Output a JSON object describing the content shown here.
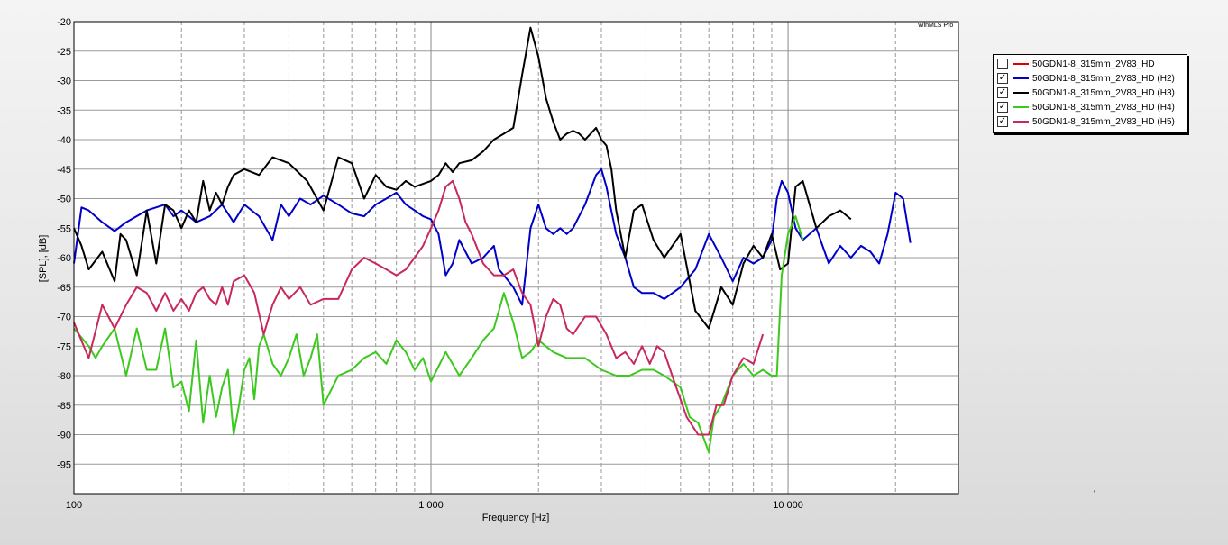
{
  "brand": "WinMLS Pro",
  "stray_mark": "'",
  "legend": [
    {
      "label": "50GDN1-8_315mm_2V83_HD",
      "checked": false,
      "check_mark": "",
      "color": "#e00000"
    },
    {
      "label": "50GDN1-8_315mm_2V83_HD (H2)",
      "checked": true,
      "check_mark": "✓",
      "color": "#0000c8"
    },
    {
      "label": "50GDN1-8_315mm_2V83_HD (H3)",
      "checked": true,
      "check_mark": "✓",
      "color": "#000000"
    },
    {
      "label": "50GDN1-8_315mm_2V83_HD (H4)",
      "checked": true,
      "check_mark": "✓",
      "color": "#3cc81e"
    },
    {
      "label": "50GDN1-8_315mm_2V83_HD (H5)",
      "checked": true,
      "check_mark": "✓",
      "color": "#c8285a"
    }
  ],
  "chart_data": {
    "type": "line",
    "title": "",
    "xlabel": "Frequency [Hz]",
    "ylabel": "[SPL], [dB]",
    "x_scale": "log",
    "xlim": [
      100,
      30000
    ],
    "ylim": [
      -100,
      -20
    ],
    "y_ticks": [
      -20,
      -25,
      -30,
      -35,
      -40,
      -45,
      -50,
      -55,
      -60,
      -65,
      -70,
      -75,
      -80,
      -85,
      -90,
      -95
    ],
    "y_tick_labels": [
      "-20",
      "-25",
      "-30",
      "-35",
      "-40",
      "-45",
      "-50",
      "-55",
      "-60",
      "-65",
      "-70",
      "-75",
      "-80",
      "-85",
      "-90",
      "-95"
    ],
    "x_major_ticks": [
      100,
      1000,
      10000
    ],
    "x_tick_labels": [
      "100",
      "1 000",
      "10 000"
    ],
    "x_minor_ticks": [
      200,
      300,
      400,
      500,
      600,
      700,
      800,
      900,
      2000,
      3000,
      4000,
      5000,
      6000,
      7000,
      8000,
      9000,
      20000,
      30000
    ],
    "grid": true,
    "legend_position": "right",
    "series": [
      {
        "name": "50GDN1-8_315mm_2V83_HD (H2)",
        "color": "#0000c8",
        "x": [
          100,
          105,
          110,
          120,
          130,
          140,
          160,
          180,
          190,
          200,
          220,
          240,
          260,
          280,
          300,
          330,
          360,
          380,
          400,
          430,
          460,
          500,
          550,
          600,
          650,
          700,
          750,
          800,
          850,
          900,
          950,
          1000,
          1050,
          1100,
          1150,
          1200,
          1300,
          1400,
          1500,
          1550,
          1600,
          1700,
          1800,
          1900,
          2000,
          2100,
          2200,
          2300,
          2400,
          2500,
          2700,
          2900,
          3000,
          3100,
          3300,
          3500,
          3700,
          3900,
          4200,
          4500,
          5000,
          5500,
          6000,
          6500,
          7000,
          7500,
          8000,
          8500,
          9000,
          9300,
          9600,
          10000,
          10500,
          11000,
          12000,
          13000,
          14000,
          15000,
          16000,
          17000,
          18000,
          19000,
          20000,
          21000,
          22000
        ],
        "y": [
          -61,
          -51.5,
          -52,
          -54,
          -55.5,
          -54,
          -52,
          -51,
          -53,
          -52,
          -54,
          -53,
          -51,
          -54,
          -51,
          -53,
          -57,
          -51,
          -53,
          -50,
          -51,
          -49.5,
          -51,
          -52.5,
          -53,
          -51,
          -50,
          -49,
          -51,
          -52,
          -53,
          -53.5,
          -56,
          -63,
          -61,
          -57,
          -61,
          -60,
          -58,
          -62,
          -63,
          -65,
          -68,
          -55,
          -51,
          -55,
          -56,
          -55,
          -56,
          -55,
          -51,
          -46,
          -45,
          -48,
          -56,
          -60,
          -65,
          -66,
          -66,
          -67,
          -65,
          -62,
          -56,
          -60,
          -64,
          -60,
          -61,
          -60,
          -57,
          -50,
          -47,
          -49,
          -55,
          -57,
          -55,
          -61,
          -58,
          -60,
          -58,
          -59,
          -61,
          -56,
          -49,
          -50,
          -57.5
        ]
      },
      {
        "name": "50GDN1-8_315mm_2V83_HD (H3)",
        "color": "#000000",
        "x": [
          100,
          105,
          110,
          120,
          130,
          135,
          140,
          150,
          160,
          170,
          180,
          190,
          200,
          210,
          220,
          230,
          240,
          250,
          260,
          270,
          280,
          300,
          330,
          360,
          400,
          450,
          500,
          550,
          600,
          650,
          700,
          750,
          800,
          850,
          900,
          950,
          1000,
          1050,
          1100,
          1150,
          1200,
          1300,
          1400,
          1500,
          1600,
          1700,
          1800,
          1900,
          2000,
          2100,
          2200,
          2300,
          2400,
          2500,
          2600,
          2700,
          2800,
          2900,
          3000,
          3100,
          3200,
          3300,
          3500,
          3700,
          3900,
          4200,
          4500,
          5000,
          5500,
          6000,
          6500,
          7000,
          7500,
          8000,
          8500,
          9000,
          9500,
          10000,
          10500,
          11000,
          12000,
          13000,
          14000,
          15000
        ],
        "y": [
          -55,
          -58,
          -62,
          -59,
          -64,
          -56,
          -57,
          -63,
          -52,
          -61,
          -51,
          -52,
          -55,
          -52,
          -54,
          -47,
          -52,
          -49,
          -51,
          -48,
          -46,
          -45,
          -46,
          -43,
          -44,
          -47,
          -52,
          -43,
          -44,
          -50,
          -46,
          -48,
          -48.5,
          -47,
          -48,
          -47.5,
          -47,
          -46,
          -44,
          -45.5,
          -44,
          -43.5,
          -42,
          -40,
          -39,
          -38,
          -29,
          -21,
          -26,
          -33,
          -37,
          -40,
          -39,
          -38.5,
          -39,
          -40,
          -39,
          -38,
          -40,
          -41,
          -45,
          -52,
          -60,
          -52,
          -51,
          -57,
          -60,
          -56,
          -69,
          -72,
          -65,
          -68,
          -61,
          -58,
          -60,
          -56,
          -62,
          -61,
          -48,
          -47,
          -55,
          -53,
          -52,
          -53.5
        ]
      },
      {
        "name": "50GDN1-8_315mm_2V83_HD (H4)",
        "color": "#3cc81e",
        "x": [
          100,
          110,
          115,
          120,
          130,
          140,
          150,
          160,
          170,
          180,
          190,
          200,
          210,
          220,
          230,
          240,
          250,
          260,
          270,
          280,
          290,
          300,
          310,
          320,
          330,
          340,
          360,
          380,
          400,
          420,
          440,
          460,
          480,
          500,
          550,
          600,
          650,
          700,
          750,
          800,
          850,
          900,
          950,
          1000,
          1100,
          1200,
          1300,
          1400,
          1500,
          1600,
          1700,
          1800,
          1900,
          2000,
          2200,
          2400,
          2700,
          3000,
          3300,
          3600,
          3900,
          4200,
          4500,
          5000,
          5300,
          5600,
          6000,
          6200,
          6500,
          7000,
          7500,
          8000,
          8500,
          9000,
          9300,
          9600,
          10000,
          10500,
          11000
        ],
        "y": [
          -72,
          -75,
          -77,
          -75,
          -72,
          -80,
          -72,
          -79,
          -79,
          -72,
          -82,
          -81,
          -86,
          -74,
          -88,
          -80,
          -87,
          -82,
          -79,
          -90,
          -85,
          -79,
          -77,
          -84,
          -75,
          -73,
          -78,
          -80,
          -77,
          -73,
          -80,
          -77,
          -73,
          -85,
          -80,
          -79,
          -77,
          -76,
          -78,
          -74,
          -76,
          -79,
          -77,
          -81,
          -76,
          -80,
          -77,
          -74,
          -72,
          -66,
          -71,
          -77,
          -76,
          -74,
          -76,
          -77,
          -77,
          -79,
          -80,
          -80,
          -79,
          -79,
          -80,
          -82,
          -87,
          -88,
          -93,
          -87,
          -85,
          -80,
          -78,
          -80,
          -79,
          -80,
          -80,
          -63,
          -56,
          -53,
          -57
        ]
      },
      {
        "name": "50GDN1-8_315mm_2V83_HD (H5)",
        "color": "#c8285a",
        "x": [
          100,
          110,
          120,
          130,
          140,
          150,
          160,
          170,
          180,
          190,
          200,
          210,
          220,
          230,
          240,
          250,
          260,
          270,
          280,
          300,
          320,
          340,
          360,
          380,
          400,
          430,
          460,
          500,
          550,
          600,
          650,
          700,
          750,
          800,
          850,
          900,
          950,
          1000,
          1050,
          1100,
          1150,
          1200,
          1250,
          1300,
          1400,
          1500,
          1600,
          1700,
          1800,
          1900,
          2000,
          2100,
          2200,
          2300,
          2400,
          2500,
          2700,
          2900,
          3100,
          3300,
          3500,
          3700,
          3900,
          4100,
          4300,
          4500,
          4800,
          5200,
          5600,
          6000,
          6300,
          6600,
          7000,
          7500,
          8000,
          8500
        ],
        "y": [
          -71,
          -77,
          -68,
          -72,
          -68,
          -65,
          -66,
          -69,
          -66,
          -69,
          -67,
          -69,
          -66,
          -65,
          -67,
          -68,
          -65,
          -68,
          -64,
          -63,
          -66,
          -73,
          -68,
          -65,
          -67,
          -65,
          -68,
          -67,
          -67,
          -62,
          -60,
          -61,
          -62,
          -63,
          -62,
          -60,
          -58,
          -55,
          -52,
          -48,
          -47,
          -50,
          -54,
          -56,
          -61,
          -63,
          -63,
          -62,
          -66,
          -68,
          -75,
          -70,
          -67,
          -68,
          -72,
          -73,
          -70,
          -70,
          -73,
          -77,
          -76,
          -78,
          -75,
          -78,
          -75,
          -76,
          -81,
          -87,
          -90,
          -90,
          -85,
          -85,
          -80,
          -77,
          -78,
          -73
        ]
      }
    ]
  }
}
